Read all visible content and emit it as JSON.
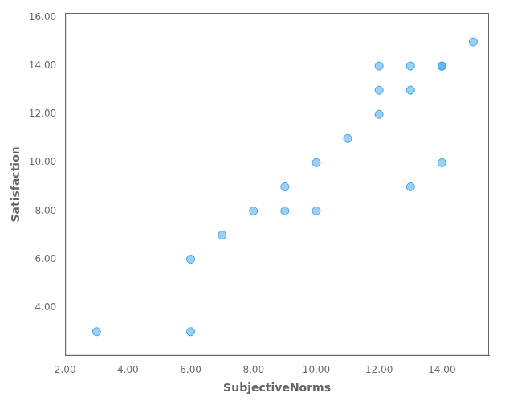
{
  "chart_data": {
    "type": "scatter",
    "x": [
      3,
      6,
      6,
      7,
      8,
      9,
      9,
      10,
      10,
      11,
      12,
      12,
      12,
      13,
      13,
      13,
      14,
      14,
      14,
      15
    ],
    "y": [
      3,
      3,
      6,
      7,
      8,
      8,
      9,
      8,
      10,
      11,
      12,
      13,
      14,
      9,
      13,
      14,
      10,
      14,
      14,
      15
    ],
    "xlabel": "SubjectiveNorms",
    "ylabel": "Satisfaction",
    "xlim": [
      2.0,
      15.5
    ],
    "ylim": [
      2.0,
      16.2
    ],
    "xticks": [
      {
        "value": 2,
        "label": "2.00"
      },
      {
        "value": 4,
        "label": "4.00"
      },
      {
        "value": 6,
        "label": "6.00"
      },
      {
        "value": 8,
        "label": "8.00"
      },
      {
        "value": 10,
        "label": "10.00"
      },
      {
        "value": 12,
        "label": "12.00"
      },
      {
        "value": 14,
        "label": "14.00"
      }
    ],
    "yticks": [
      {
        "value": 4,
        "label": "4.00"
      },
      {
        "value": 6,
        "label": "6.00"
      },
      {
        "value": 8,
        "label": "8.00"
      },
      {
        "value": 10,
        "label": "10.00"
      },
      {
        "value": 12,
        "label": "12.00"
      },
      {
        "value": 14,
        "label": "14.00"
      },
      {
        "value": 16,
        "label": "16.00"
      }
    ],
    "grid": false
  }
}
